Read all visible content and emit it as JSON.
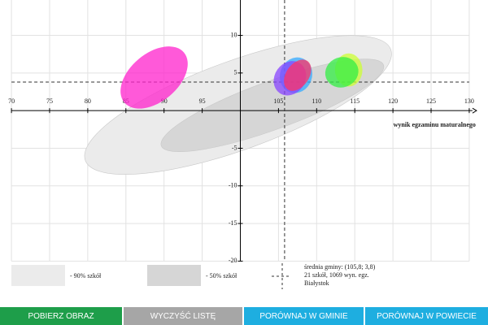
{
  "chart_data": {
    "type": "ellipse",
    "x_label": "wynik egzaminu maturalnego",
    "xlim": [
      68.5,
      131.5
    ],
    "ylim": [
      -20.5,
      14.7
    ],
    "xticks": [
      70,
      75,
      80,
      85,
      90,
      95,
      105,
      110,
      115,
      120,
      125,
      130
    ],
    "yticks": [
      -20,
      -15,
      -10,
      -5,
      5,
      10
    ],
    "grid": true,
    "axes_cross": {
      "x": 100,
      "y": 0
    },
    "mean": {
      "x": 105.8,
      "y": 3.8
    },
    "bands": [
      {
        "name": "- 90% szkół",
        "color": "#ebebeb",
        "x": 99.7,
        "y": 0.75,
        "rx": 21.3,
        "ry": 5.9,
        "angle": -20
      },
      {
        "name": "- 50% szkół",
        "color": "#d6d6d6",
        "x": 104.2,
        "y": 0.7,
        "rx": 15.5,
        "ry": 3.2,
        "angle": -20
      }
    ],
    "schools": [
      {
        "color": "#ff22cc",
        "x": 88.7,
        "y": 4.4,
        "rx": 5.1,
        "ry": 3.2,
        "angle": -40
      },
      {
        "color": "#ccff33",
        "x": 114.2,
        "y": 5.4,
        "rx": 1.8,
        "ry": 2.2,
        "angle": 0
      },
      {
        "color": "#33ee44",
        "x": 113.3,
        "y": 5.1,
        "rx": 2.2,
        "ry": 2.0,
        "angle": -20
      },
      {
        "color": "#33aaff",
        "x": 107.3,
        "y": 4.7,
        "rx": 2.1,
        "ry": 2.4,
        "angle": 20
      },
      {
        "color": "#8844ff",
        "x": 106.5,
        "y": 4.3,
        "rx": 2.0,
        "ry": 2.4,
        "angle": 35
      },
      {
        "color": "#ff3366",
        "x": 107.5,
        "y": 4.7,
        "rx": 1.5,
        "ry": 2.3,
        "angle": 35
      }
    ],
    "mean_legend": [
      "średnia gminy: (105,8; 3,8)",
      "21 szkół, 1069 wyn. egz.",
      "Białystok"
    ]
  },
  "buttons": [
    {
      "label": "POBIERZ OBRAZ",
      "color": "#1e9e4a"
    },
    {
      "label": "WYCZYŚĆ LISTĘ",
      "color": "#a6a6a6"
    },
    {
      "label": "PORÓWNAJ W GMINIE",
      "color": "#1eaee0"
    },
    {
      "label": "PORÓWNAJ W POWIECIE",
      "color": "#1eaee0"
    }
  ]
}
